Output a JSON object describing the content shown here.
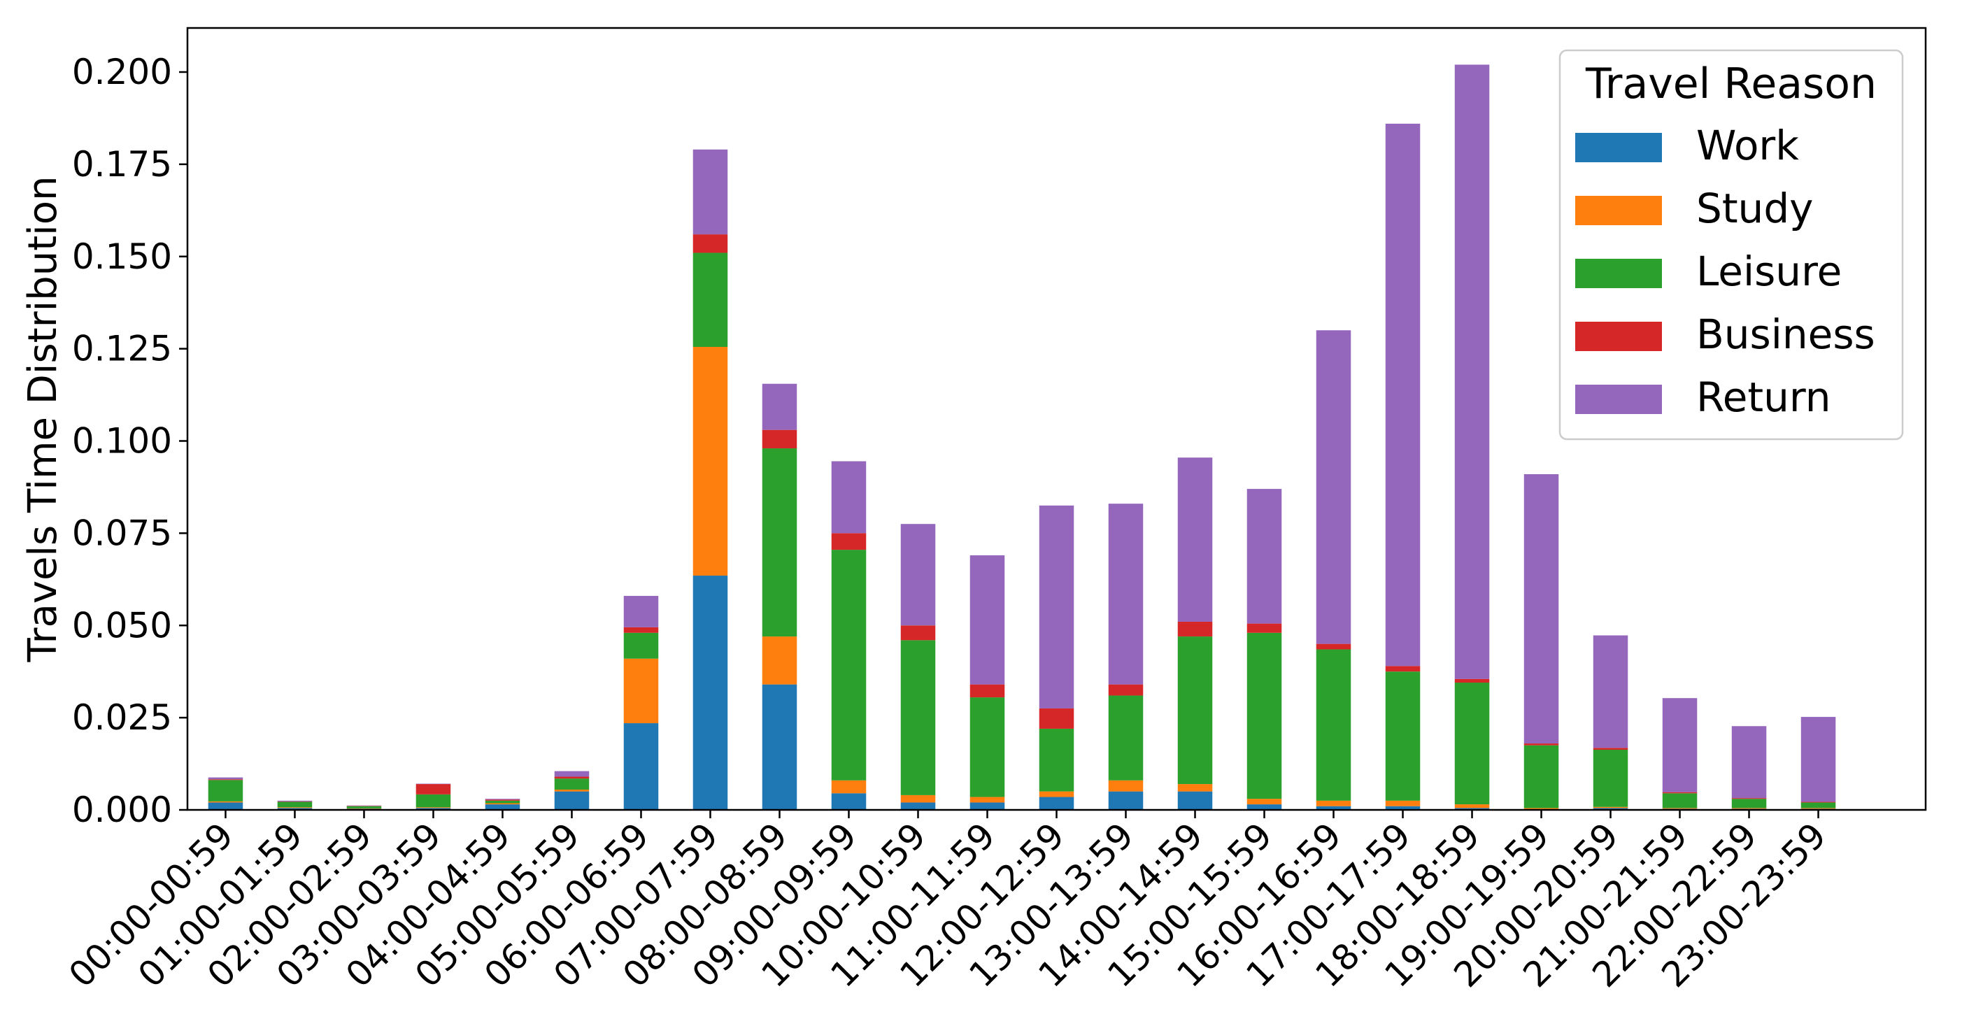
{
  "chart_data": {
    "type": "bar",
    "stacked": true,
    "ylabel": "Travels Time Distribution",
    "xlabel": "",
    "ylim": [
      0,
      0.2125
    ],
    "yticks": [
      "0.000",
      "0.025",
      "0.050",
      "0.075",
      "0.100",
      "0.125",
      "0.150",
      "0.175",
      "0.200"
    ],
    "grid": false,
    "legend": {
      "title": "Travel Reason",
      "position": "top-right"
    },
    "categories": [
      "00:00-00:59",
      "01:00-01:59",
      "02:00-02:59",
      "03:00-03:59",
      "04:00-04:59",
      "05:00-05:59",
      "06:00-06:59",
      "07:00-07:59",
      "08:00-08:59",
      "09:00-09:59",
      "10:00-10:59",
      "11:00-11:59",
      "12:00-12:59",
      "13:00-13:59",
      "14:00-14:59",
      "15:00-15:59",
      "16:00-16:59",
      "17:00-17:59",
      "18:00-18:59",
      "19:00-19:59",
      "20:00-20:59",
      "21:00-21:59",
      "22:00-22:59",
      "23:00-23:59"
    ],
    "series": [
      {
        "name": "Work",
        "color": "#1f77b4",
        "values": [
          0.002,
          0.0005,
          0.0003,
          0.0005,
          0.0015,
          0.005,
          0.0235,
          0.0635,
          0.034,
          0.0045,
          0.002,
          0.002,
          0.0035,
          0.005,
          0.005,
          0.0015,
          0.001,
          0.001,
          0.0005,
          0.0002,
          0.0005,
          0.0003,
          0.0003,
          0.0003
        ]
      },
      {
        "name": "Study",
        "color": "#ff7f0e",
        "values": [
          0.0003,
          0.0002,
          0.0001,
          0.0002,
          0.0003,
          0.0005,
          0.0175,
          0.062,
          0.013,
          0.0035,
          0.002,
          0.0015,
          0.0015,
          0.003,
          0.002,
          0.0015,
          0.0015,
          0.0015,
          0.001,
          0.0003,
          0.0003,
          0.0002,
          0.0002,
          0.0002
        ]
      },
      {
        "name": "Leisure",
        "color": "#2ca02c",
        "values": [
          0.0058,
          0.0015,
          0.0006,
          0.0035,
          0.0007,
          0.003,
          0.007,
          0.0255,
          0.051,
          0.0625,
          0.042,
          0.027,
          0.017,
          0.023,
          0.04,
          0.045,
          0.041,
          0.035,
          0.033,
          0.017,
          0.0155,
          0.004,
          0.0025,
          0.0015
        ]
      },
      {
        "name": "Business",
        "color": "#d62728",
        "values": [
          0.0002,
          0.0001,
          0.0001,
          0.0028,
          0.0003,
          0.0005,
          0.0015,
          0.005,
          0.005,
          0.0045,
          0.004,
          0.0035,
          0.0055,
          0.003,
          0.004,
          0.0025,
          0.0015,
          0.0015,
          0.001,
          0.0005,
          0.0005,
          0.0003,
          0.0002,
          0.0002
        ]
      },
      {
        "name": "Return",
        "color": "#9467bd",
        "values": [
          0.0005,
          0.0002,
          0.0001,
          0.0001,
          0.0002,
          0.0015,
          0.0085,
          0.023,
          0.0125,
          0.0195,
          0.0275,
          0.035,
          0.055,
          0.049,
          0.0445,
          0.0365,
          0.085,
          0.147,
          0.1665,
          0.073,
          0.0305,
          0.0255,
          0.0195,
          0.023
        ]
      }
    ]
  }
}
